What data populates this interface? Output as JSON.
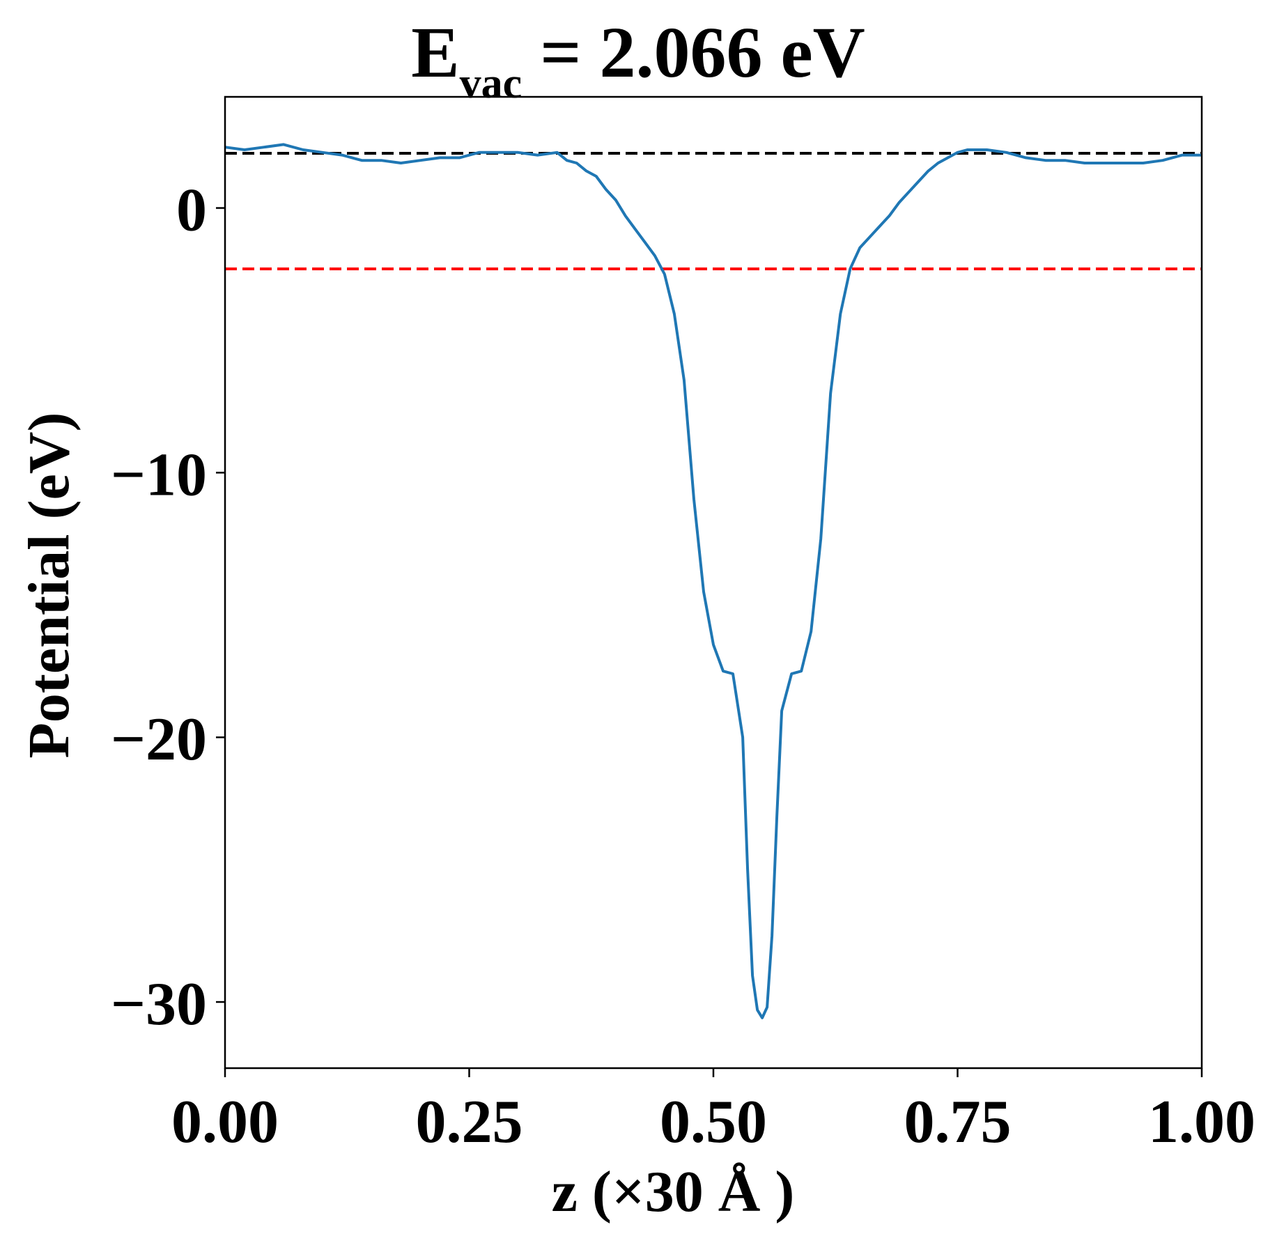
{
  "chart_data": {
    "type": "line",
    "title": {
      "symbol": "E",
      "subscript": "vac",
      "rest": " = 2.066 eV"
    },
    "xlabel": "z (×30 Å )",
    "ylabel": "Potential (eV)",
    "xlim": [
      0.0,
      1.0
    ],
    "ylim": [
      -32.5,
      4.2
    ],
    "x_ticks": [
      0.0,
      0.25,
      0.5,
      0.75,
      1.0
    ],
    "x_tick_labels": [
      "0.00",
      "0.25",
      "0.50",
      "0.75",
      "1.00"
    ],
    "y_ticks": [
      0,
      -10,
      -20,
      -30
    ],
    "y_tick_labels": [
      "0",
      "−10",
      "−20",
      "−30"
    ],
    "grid": false,
    "legend": "none",
    "reference_lines": [
      {
        "y": 2.066,
        "color": "#000000",
        "style": "dashed"
      },
      {
        "y": -2.3,
        "color": "#ff0000",
        "style": "dashed"
      }
    ],
    "series": [
      {
        "color": "#1f77b4",
        "x": [
          0.0,
          0.02,
          0.04,
          0.06,
          0.08,
          0.1,
          0.12,
          0.14,
          0.16,
          0.18,
          0.2,
          0.22,
          0.24,
          0.26,
          0.28,
          0.3,
          0.32,
          0.34,
          0.35,
          0.36,
          0.37,
          0.38,
          0.39,
          0.4,
          0.41,
          0.42,
          0.43,
          0.44,
          0.45,
          0.46,
          0.47,
          0.48,
          0.49,
          0.5,
          0.51,
          0.52,
          0.53,
          0.535,
          0.54,
          0.545,
          0.55,
          0.555,
          0.56,
          0.565,
          0.57,
          0.58,
          0.59,
          0.6,
          0.61,
          0.62,
          0.63,
          0.64,
          0.65,
          0.66,
          0.67,
          0.68,
          0.69,
          0.7,
          0.71,
          0.72,
          0.73,
          0.74,
          0.75,
          0.76,
          0.78,
          0.8,
          0.82,
          0.84,
          0.86,
          0.88,
          0.9,
          0.92,
          0.94,
          0.96,
          0.98,
          1.0
        ],
        "y": [
          2.3,
          2.2,
          2.3,
          2.4,
          2.2,
          2.1,
          2.0,
          1.8,
          1.8,
          1.7,
          1.8,
          1.9,
          1.9,
          2.1,
          2.1,
          2.1,
          2.0,
          2.1,
          1.8,
          1.7,
          1.4,
          1.2,
          0.7,
          0.3,
          -0.3,
          -0.8,
          -1.3,
          -1.8,
          -2.5,
          -4.0,
          -6.5,
          -11.0,
          -14.5,
          -16.5,
          -17.5,
          -17.6,
          -20.0,
          -25.0,
          -29.0,
          -30.3,
          -30.6,
          -30.2,
          -27.5,
          -23.0,
          -19.0,
          -17.6,
          -17.5,
          -16.0,
          -12.5,
          -7.0,
          -4.0,
          -2.3,
          -1.5,
          -1.1,
          -0.7,
          -0.3,
          0.2,
          0.6,
          1.0,
          1.4,
          1.7,
          1.9,
          2.1,
          2.2,
          2.2,
          2.1,
          1.9,
          1.8,
          1.8,
          1.7,
          1.7,
          1.7,
          1.7,
          1.8,
          2.0,
          2.0
        ]
      }
    ]
  }
}
